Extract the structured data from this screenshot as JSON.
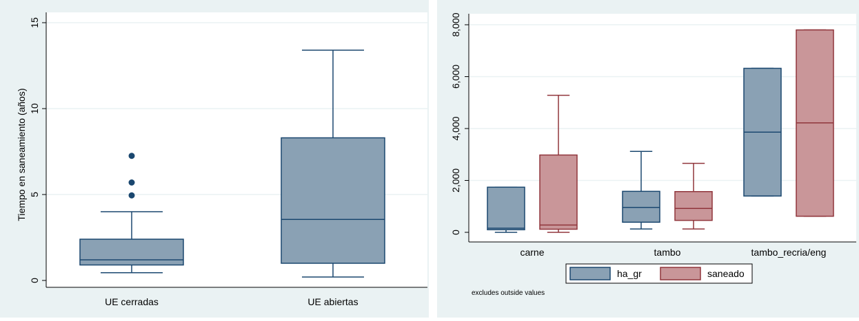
{
  "colors": {
    "panel_bg": "#eaf2f3",
    "plot_bg": "#ffffff",
    "grid": "#eaf2f3",
    "blue_fill": "#8aa1b4",
    "blue_line": "#1a476f",
    "red_fill": "#c99699",
    "red_line": "#90353b",
    "axis": "#000000"
  },
  "chart_data": [
    {
      "type": "box",
      "ylabel": "Tiempo en saneamiento (años)",
      "xlabel": "",
      "ylim": [
        0,
        15
      ],
      "yticks": [
        0,
        5,
        10,
        15
      ],
      "ytick_labels": [
        "0",
        "5",
        "10",
        "15"
      ],
      "tick_orientation": "rotated",
      "grid": true,
      "categories": [
        "UE cerradas",
        "UE abiertas"
      ],
      "boxes": [
        {
          "category": "UE cerradas",
          "min": 0.45,
          "q1": 0.9,
          "median": 1.2,
          "q3": 2.4,
          "max": 4.0,
          "outliers": [
            4.95,
            5.7,
            7.25
          ]
        },
        {
          "category": "UE abiertas",
          "min": 0.2,
          "q1": 1.0,
          "median": 3.55,
          "q3": 8.3,
          "max": 13.4,
          "outliers": []
        }
      ]
    },
    {
      "type": "box",
      "xlabel": "",
      "ylabel": "",
      "ylim": [
        0,
        8000
      ],
      "yticks": [
        0,
        2000,
        4000,
        6000,
        8000
      ],
      "ytick_labels": [
        "0",
        "2,000",
        "4,000",
        "6,000",
        "8,000"
      ],
      "grid": true,
      "categories": [
        "carne",
        "tambo",
        "tambo_recria/eng"
      ],
      "series": [
        {
          "name": "ha_gr",
          "boxes": [
            {
              "category": "carne",
              "min": 0,
              "q1": 100,
              "median": 160,
              "q3": 1740,
              "max": 1740
            },
            {
              "category": "tambo",
              "min": 130,
              "q1": 390,
              "median": 960,
              "q3": 1580,
              "max": 3120
            },
            {
              "category": "tambo_recria/eng",
              "min": 1400,
              "q1": 1400,
              "median": 3860,
              "q3": 6320,
              "max": 6320
            }
          ]
        },
        {
          "name": "saneado",
          "boxes": [
            {
              "category": "carne",
              "min": 0,
              "q1": 120,
              "median": 280,
              "q3": 2980,
              "max": 5280
            },
            {
              "category": "tambo",
              "min": 130,
              "q1": 460,
              "median": 920,
              "q3": 1570,
              "max": 2660
            },
            {
              "category": "tambo_recria/eng",
              "min": 620,
              "q1": 620,
              "median": 4220,
              "q3": 7800,
              "max": 7800
            }
          ]
        }
      ],
      "legend": {
        "position": "bottom",
        "entries": [
          "ha_gr",
          "saneado"
        ]
      },
      "note": "excludes outside values"
    }
  ]
}
